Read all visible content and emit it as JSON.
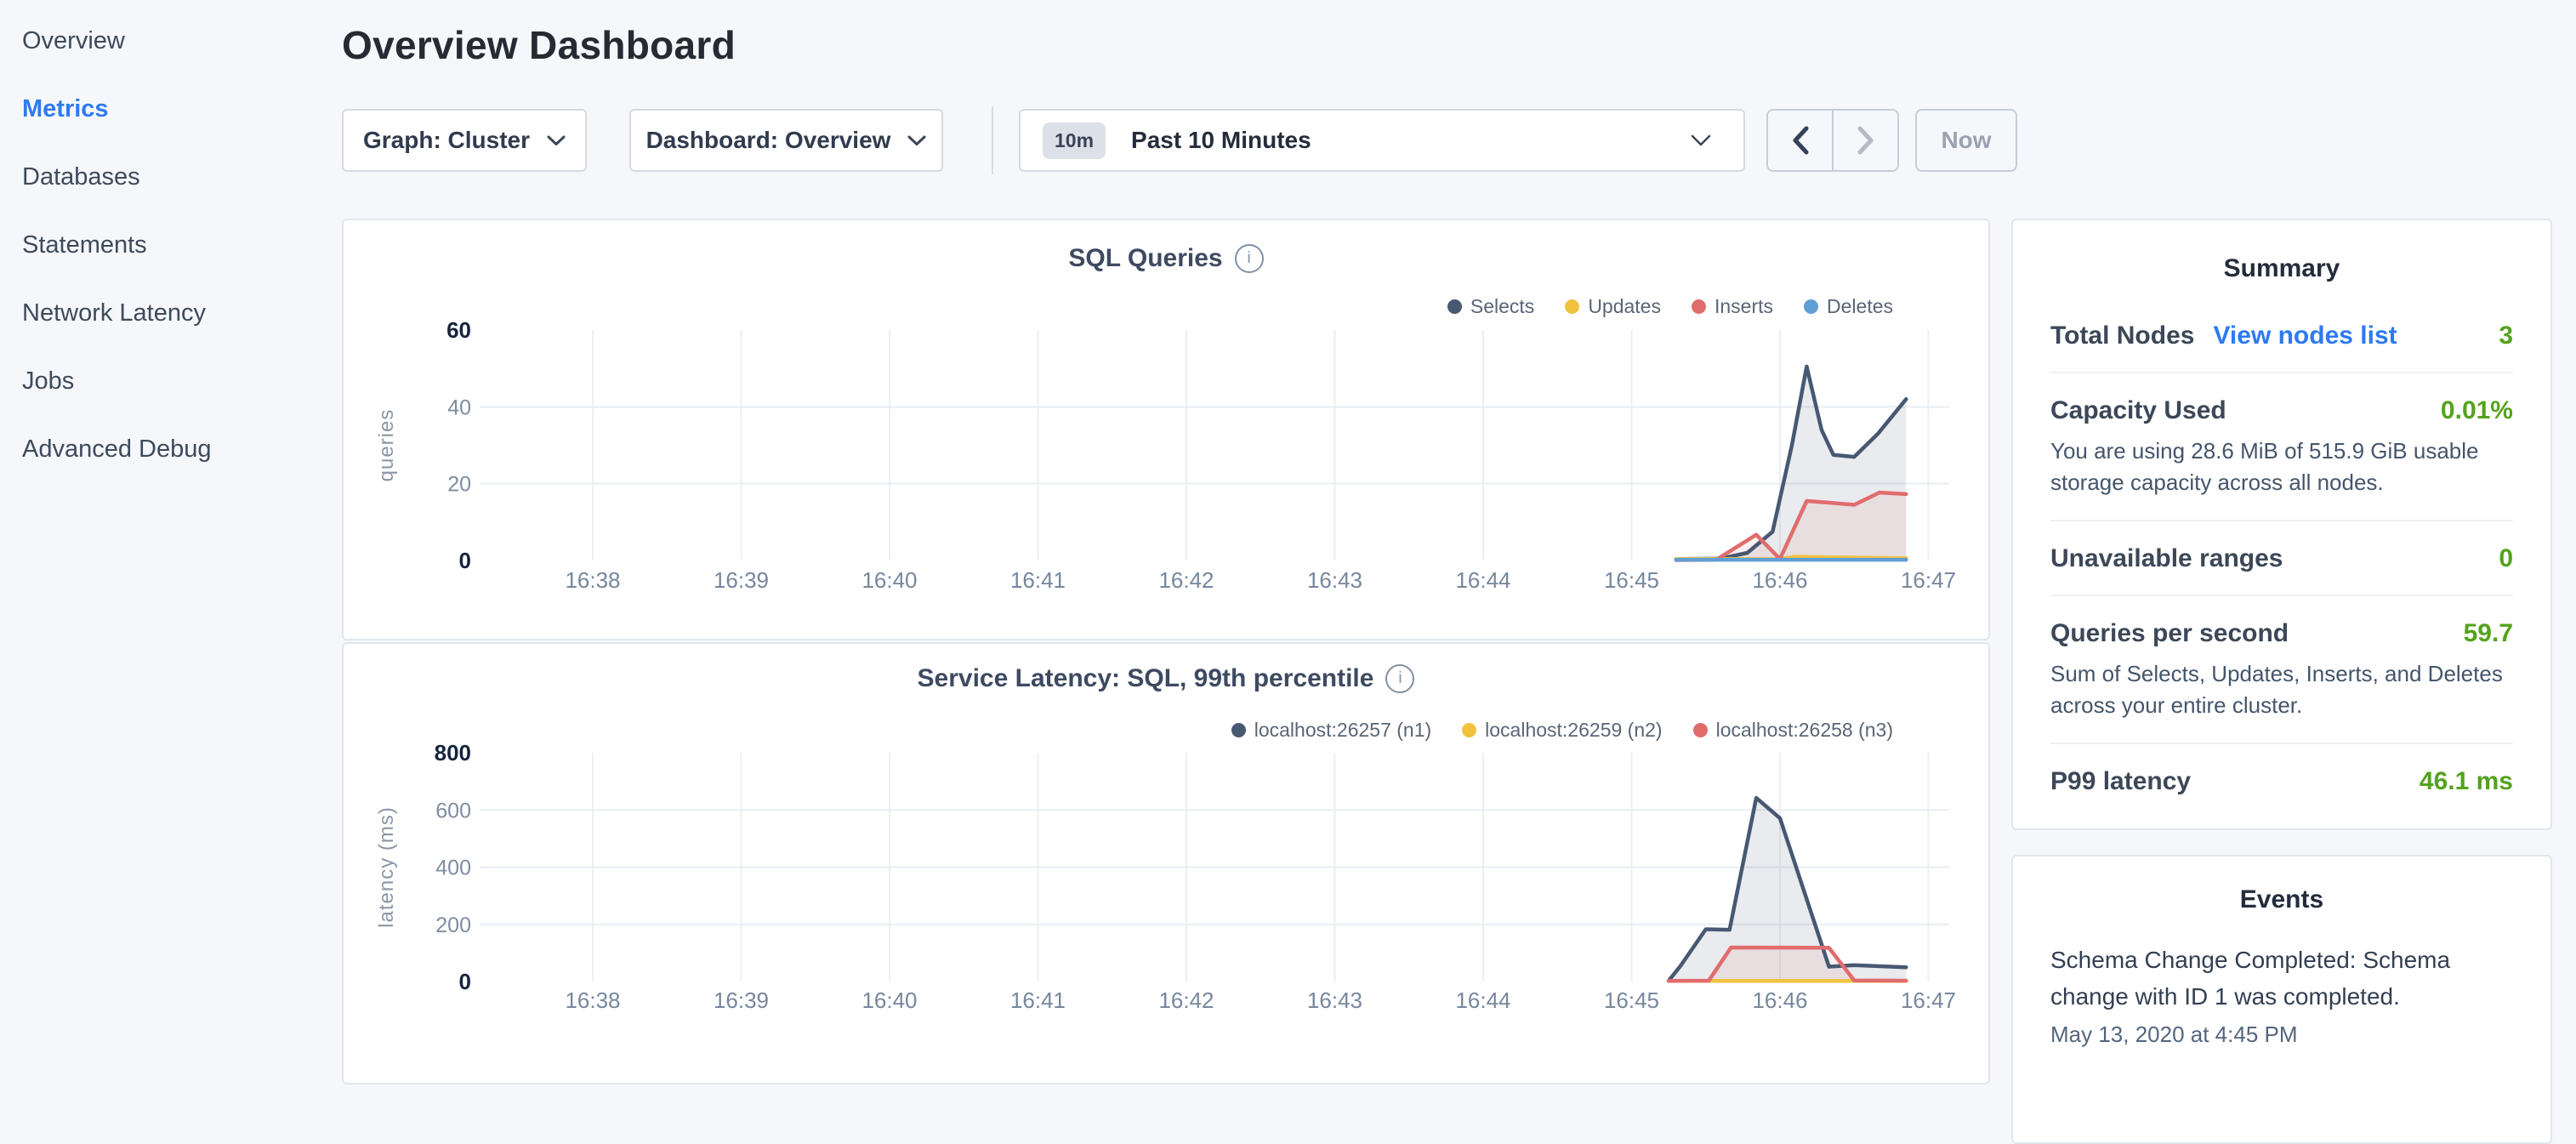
{
  "sidebar": {
    "items": [
      {
        "label": "Overview",
        "active": false
      },
      {
        "label": "Metrics",
        "active": true
      },
      {
        "label": "Databases",
        "active": false
      },
      {
        "label": "Statements",
        "active": false
      },
      {
        "label": "Network Latency",
        "active": false
      },
      {
        "label": "Jobs",
        "active": false
      },
      {
        "label": "Advanced Debug",
        "active": false
      }
    ]
  },
  "header": {
    "title": "Overview Dashboard"
  },
  "controls": {
    "graph_dropdown": {
      "label": "Graph: Cluster"
    },
    "dashboard_dropdown": {
      "label": "Dashboard: Overview"
    },
    "time_picker": {
      "badge": "10m",
      "label": "Past 10 Minutes"
    },
    "now_label": "Now"
  },
  "chart_data": [
    {
      "type": "area",
      "title": "SQL Queries",
      "ylabel": "queries",
      "ylim": [
        0,
        60
      ],
      "yticks": [
        0,
        20,
        40,
        60
      ],
      "xticks": [
        "16:38",
        "16:39",
        "16:40",
        "16:41",
        "16:42",
        "16:43",
        "16:44",
        "16:45",
        "16:46",
        "16:47"
      ],
      "grid": true,
      "legend_position": "top-right",
      "series": [
        {
          "name": "Selects",
          "color": "#475872",
          "fill": "rgba(71,88,114,0.12)",
          "points": [
            [
              45.3,
              0.4
            ],
            [
              45.6,
              0.5
            ],
            [
              45.78,
              2
            ],
            [
              45.95,
              7.5
            ],
            [
              46.08,
              30
            ],
            [
              46.18,
              50.5
            ],
            [
              46.28,
              34
            ],
            [
              46.36,
              27.5
            ],
            [
              46.5,
              27
            ],
            [
              46.66,
              33
            ],
            [
              46.85,
              42
            ]
          ]
        },
        {
          "name": "Updates",
          "color": "#f1c240",
          "fill": "rgba(241,194,64,0.10)",
          "points": [
            [
              45.3,
              0.4
            ],
            [
              46.0,
              0.4
            ],
            [
              46.1,
              1
            ],
            [
              46.4,
              0.8
            ],
            [
              46.85,
              0.6
            ]
          ]
        },
        {
          "name": "Inserts",
          "color": "#e06c6c",
          "fill": "rgba(224,108,108,0.10)",
          "points": [
            [
              45.3,
              0.1
            ],
            [
              45.57,
              0.2
            ],
            [
              45.84,
              6.7
            ],
            [
              46.0,
              0.4
            ],
            [
              46.18,
              15.5
            ],
            [
              46.35,
              15
            ],
            [
              46.5,
              14.5
            ],
            [
              46.67,
              17.7
            ],
            [
              46.85,
              17.3
            ]
          ]
        },
        {
          "name": "Deletes",
          "color": "#5f9fd6",
          "fill": "rgba(95,159,214,0.10)",
          "points": [
            [
              45.3,
              0.2
            ],
            [
              46.85,
              0.2
            ]
          ]
        }
      ]
    },
    {
      "type": "area",
      "title": "Service Latency: SQL, 99th percentile",
      "ylabel": "latency (ms)",
      "ylim": [
        0,
        800
      ],
      "yticks": [
        0,
        200,
        400,
        600,
        800
      ],
      "xticks": [
        "16:38",
        "16:39",
        "16:40",
        "16:41",
        "16:42",
        "16:43",
        "16:44",
        "16:45",
        "16:46",
        "16:47"
      ],
      "grid": true,
      "legend_position": "top-right",
      "series": [
        {
          "name": "localhost:26257 (n1)",
          "color": "#475872",
          "fill": "rgba(71,88,114,0.12)",
          "points": [
            [
              45.25,
              3
            ],
            [
              45.33,
              55
            ],
            [
              45.5,
              183
            ],
            [
              45.66,
              181
            ],
            [
              45.84,
              642
            ],
            [
              46.0,
              571
            ],
            [
              46.33,
              52
            ],
            [
              46.5,
              57
            ],
            [
              46.85,
              50
            ]
          ]
        },
        {
          "name": "localhost:26259 (n2)",
          "color": "#f1c240",
          "fill": "rgba(241,194,64,0.10)",
          "points": [
            [
              45.25,
              2
            ],
            [
              46.85,
              2
            ]
          ]
        },
        {
          "name": "localhost:26258 (n3)",
          "color": "#e06c6c",
          "fill": "rgba(224,108,108,0.10)",
          "points": [
            [
              45.25,
              2
            ],
            [
              45.52,
              3
            ],
            [
              45.67,
              119
            ],
            [
              46.33,
              118
            ],
            [
              46.5,
              4
            ],
            [
              46.85,
              3
            ]
          ]
        }
      ]
    }
  ],
  "summary": {
    "title": "Summary",
    "rows": [
      {
        "label": "Total Nodes",
        "link": "View nodes list",
        "value": "3"
      },
      {
        "label": "Capacity Used",
        "value": "0.01%",
        "sub": "You are using 28.6 MiB of 515.9 GiB usable storage capacity across all nodes."
      },
      {
        "label": "Unavailable ranges",
        "value": "0"
      },
      {
        "label": "Queries per second",
        "value": "59.7",
        "sub": "Sum of Selects, Updates, Inserts, and Deletes across your entire cluster."
      },
      {
        "label": "P99 latency",
        "value": "46.1 ms"
      }
    ]
  },
  "events": {
    "title": "Events",
    "items": [
      {
        "text": "Schema Change Completed: Schema change with ID 1 was completed.",
        "time": "May 13, 2020 at 4:45 PM"
      }
    ]
  },
  "colors": {
    "accent_blue": "#2d7af0",
    "value_green": "#54a31c",
    "series_navy": "#475872",
    "series_yellow": "#f1c240",
    "series_red": "#e06c6c",
    "series_blue": "#5f9fd6",
    "gridline": "#e9edf2"
  }
}
